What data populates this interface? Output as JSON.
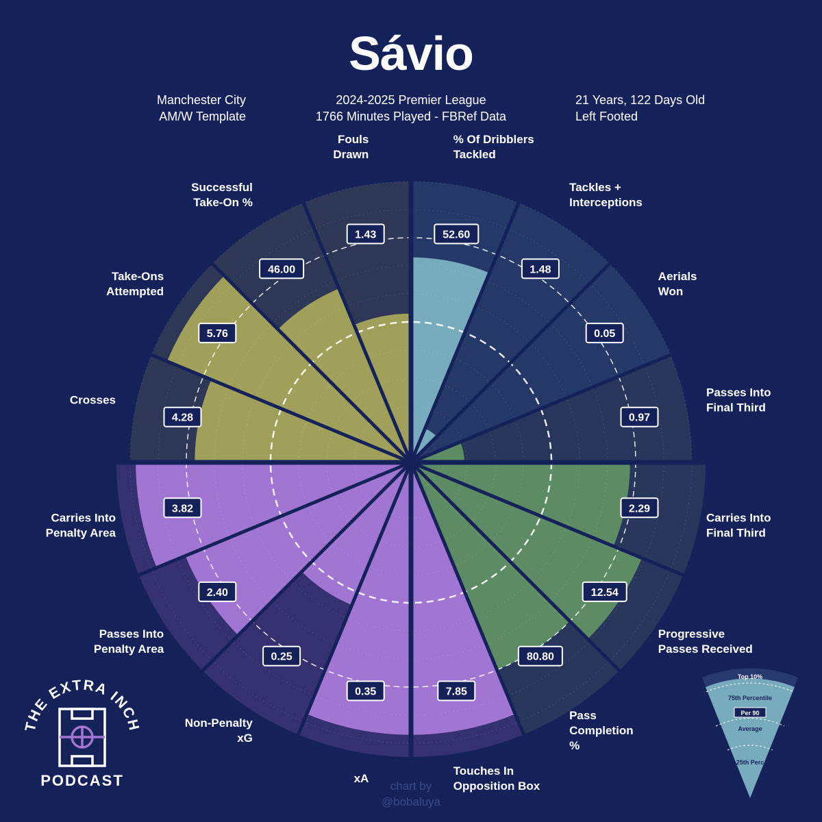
{
  "header": {
    "title": "Sávio",
    "meta_left": [
      "Manchester City",
      "AM/W Template"
    ],
    "meta_center": [
      "2024-2025 Premier League",
      "1766 Minutes Played - FBRef Data"
    ],
    "meta_right": [
      "21 Years, 122 Days Old",
      "Left Footed"
    ]
  },
  "colors": {
    "background": "#15225a",
    "attacking": "#a0a05a",
    "attacking_background": "#2e3756",
    "defending": "#78abbd",
    "defending_background": "#243968",
    "passing": "#5d8b63",
    "passing_background": "#27365a",
    "shooting": "#a176d2",
    "shooting_background": "#35306f"
  },
  "chart_data": {
    "type": "pizza",
    "scale_marks": [
      "25th Perc",
      "Average",
      "75th Percentile",
      "Top 10%"
    ],
    "stats": [
      {
        "label": "% Of Dribblers Tackled",
        "value": "52.60",
        "percentile": 73,
        "group": "defending"
      },
      {
        "label": "Tackles + Interceptions",
        "value": "1.48",
        "percentile": 13,
        "group": "defending"
      },
      {
        "label": "Aerials Won",
        "value": "0.05",
        "percentile": 1,
        "group": "defending"
      },
      {
        "label": "Passes Into Final Third",
        "value": "0.97",
        "percentile": 19,
        "group": "passing"
      },
      {
        "label": "Carries Into Final Third",
        "value": "2.29",
        "percentile": 78,
        "group": "passing"
      },
      {
        "label": "Progressive Passes Received",
        "value": "12.54",
        "percentile": 89,
        "group": "passing"
      },
      {
        "label": "Pass Completion %",
        "value": "80.80",
        "percentile": 80,
        "group": "passing"
      },
      {
        "label": "Touches In Opposition Box",
        "value": "7.85",
        "percentile": 97,
        "group": "shooting"
      },
      {
        "label": "xA",
        "value": "0.35",
        "percentile": 97,
        "group": "shooting"
      },
      {
        "label": "Non-Penalty xG",
        "value": "0.25",
        "percentile": 55,
        "group": "shooting"
      },
      {
        "label": "Passes Into Penalty Area",
        "value": "2.40",
        "percentile": 87,
        "group": "shooting"
      },
      {
        "label": "Carries Into Penalty Area",
        "value": "3.82",
        "percentile": 98,
        "group": "shooting"
      },
      {
        "label": "Crosses",
        "value": "4.28",
        "percentile": 77,
        "group": "attacking"
      },
      {
        "label": "Take-Ons Attempted",
        "value": "5.76",
        "percentile": 94,
        "group": "attacking"
      },
      {
        "label": "Successful Take-On %",
        "value": "46.00",
        "percentile": 67,
        "group": "attacking"
      },
      {
        "label": "Fouls Drawn",
        "value": "1.43",
        "percentile": 53,
        "group": "attacking"
      }
    ]
  },
  "logo": {
    "top_text": "THE EXTRA INCH",
    "bottom_text": "PODCAST"
  },
  "credit": [
    "chart by",
    "@bobaluya"
  ],
  "legend": {
    "top": "Top 10%",
    "p75": "75th Percentile",
    "value": "Per 90",
    "average": "Average",
    "p25": "25th Perc"
  }
}
